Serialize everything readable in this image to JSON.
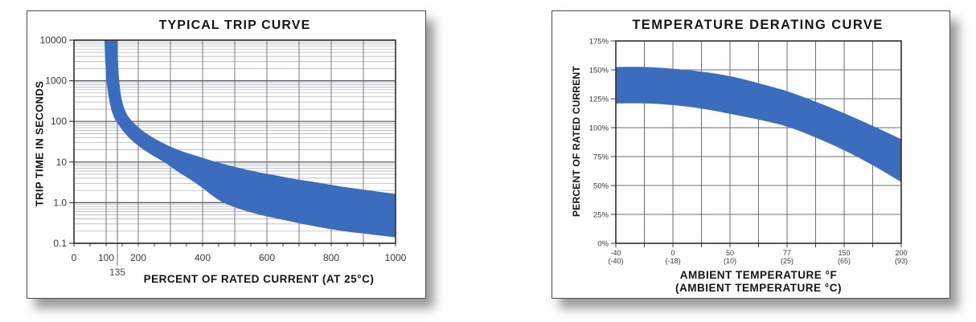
{
  "page": {
    "background": "#ffffff"
  },
  "chart_data": [
    {
      "type": "area",
      "title": "TYPICAL TRIP CURVE",
      "xlabel": "PERCENT OF RATED CURRENT (AT 25°C)",
      "ylabel": "TRIP TIME IN SECONDS",
      "grid": true,
      "x_axis": {
        "min": 0,
        "max": 1000,
        "tick_labels": [
          "0",
          "100",
          "200",
          "400",
          "600",
          "800",
          "1000"
        ],
        "tick_values": [
          0,
          100,
          200,
          400,
          600,
          800,
          1000
        ],
        "gridline_step": 100,
        "minor_tick_step": 50,
        "special_tick": {
          "value": 135,
          "label": "135"
        }
      },
      "y_axis": {
        "scale": "log",
        "min": 0.1,
        "max": 10000,
        "tick_labels": [
          "10000",
          "1000",
          "100",
          "10",
          "1.0",
          "0.1"
        ],
        "tick_values": [
          10000,
          1000,
          100,
          10,
          1,
          0.1
        ]
      },
      "band": {
        "name": "typical-trip-region",
        "color": "#3b6cbe",
        "lower_curve": [
          [
            95,
            10000
          ],
          [
            98,
            2500
          ],
          [
            102,
            900
          ],
          [
            108,
            400
          ],
          [
            116,
            200
          ],
          [
            126,
            120
          ],
          [
            135,
            92
          ],
          [
            155,
            55
          ],
          [
            180,
            34
          ],
          [
            210,
            22
          ],
          [
            245,
            14.5
          ],
          [
            280,
            10
          ],
          [
            320,
            6
          ],
          [
            360,
            3.8
          ],
          [
            400,
            2.3
          ],
          [
            430,
            1.5
          ],
          [
            465,
            1.0
          ],
          [
            520,
            0.68
          ],
          [
            580,
            0.5
          ],
          [
            650,
            0.38
          ],
          [
            730,
            0.28
          ],
          [
            820,
            0.21
          ],
          [
            910,
            0.17
          ],
          [
            1000,
            0.14
          ]
        ],
        "upper_curve": [
          [
            135,
            10000
          ],
          [
            137,
            3000
          ],
          [
            140,
            1200
          ],
          [
            145,
            500
          ],
          [
            152,
            270
          ],
          [
            162,
            165
          ],
          [
            175,
            115
          ],
          [
            190,
            85
          ],
          [
            210,
            62
          ],
          [
            235,
            45
          ],
          [
            265,
            33
          ],
          [
            300,
            24
          ],
          [
            340,
            18
          ],
          [
            390,
            13.5
          ],
          [
            440,
            10.2
          ],
          [
            500,
            7.6
          ],
          [
            560,
            5.9
          ],
          [
            620,
            4.8
          ],
          [
            690,
            3.8
          ],
          [
            760,
            3.1
          ],
          [
            830,
            2.5
          ],
          [
            900,
            2.1
          ],
          [
            950,
            1.85
          ],
          [
            1000,
            1.65
          ]
        ]
      }
    },
    {
      "type": "area",
      "title": "TEMPERATURE DERATING CURVE",
      "xlabel_line1": "AMBIENT TEMPERATURE °F",
      "xlabel_line2": "(AMBIENT TEMPERATURE °C)",
      "ylabel": "PERCENT OF RATED CURRENT",
      "grid": true,
      "x_axis": {
        "gridline_count": 11,
        "tick_positions": [
          0,
          2,
          4,
          6,
          8,
          10
        ],
        "tick_labels_f": [
          "-40",
          "0",
          "50",
          "77",
          "150",
          "200"
        ],
        "tick_labels_c": [
          "(-40)",
          "(-18)",
          "(10)",
          "(25)",
          "(65)",
          "(93)"
        ]
      },
      "y_axis": {
        "min": 0,
        "max": 175,
        "step": 25,
        "tick_labels": [
          "175%",
          "150%",
          "125%",
          "100%",
          "75%",
          "50%",
          "25%",
          "0%"
        ]
      },
      "band": {
        "name": "derating-region",
        "color": "#3b6cbe",
        "x_positions": [
          0,
          1,
          2,
          3,
          4,
          5,
          6,
          7,
          8,
          9,
          10
        ],
        "upper_values": [
          152.5,
          152.5,
          151,
          148.5,
          144.5,
          138.5,
          131.5,
          122.5,
          112.5,
          101.5,
          90
        ],
        "lower_values": [
          121,
          121,
          119.5,
          116.5,
          112,
          107,
          101,
          91.5,
          80.5,
          67.5,
          53
        ]
      }
    }
  ],
  "colors": {
    "band_blue": "#3b6cbe",
    "grid_major": "#4b4f55",
    "grid_minor": "#a9aeb4",
    "grid_vertical": "#6b7076",
    "axis_border": "#2f2f2f",
    "tick_text": "#3a3a3a"
  }
}
